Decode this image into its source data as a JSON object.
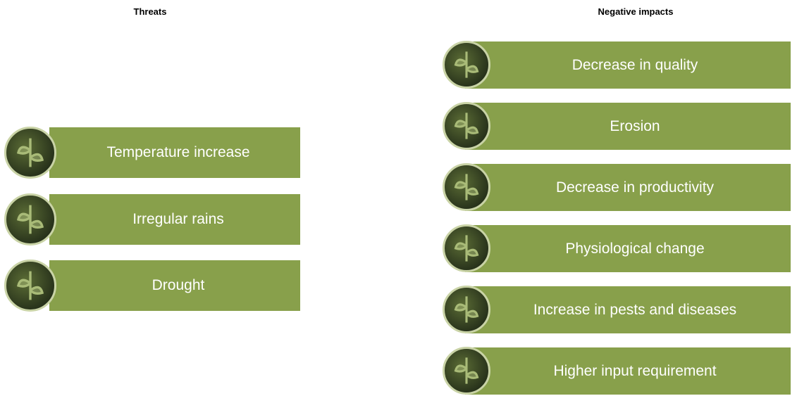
{
  "threats": {
    "title": "Threats",
    "items": [
      "Temperature increase",
      "Irregular rains",
      "Drought"
    ]
  },
  "impacts": {
    "title": "Negative impacts",
    "items": [
      "Decrease in quality",
      "Erosion",
      "Decrease in productivity",
      "Physiological change",
      "Increase in pests and diseases",
      "Higher input requirement"
    ]
  }
}
